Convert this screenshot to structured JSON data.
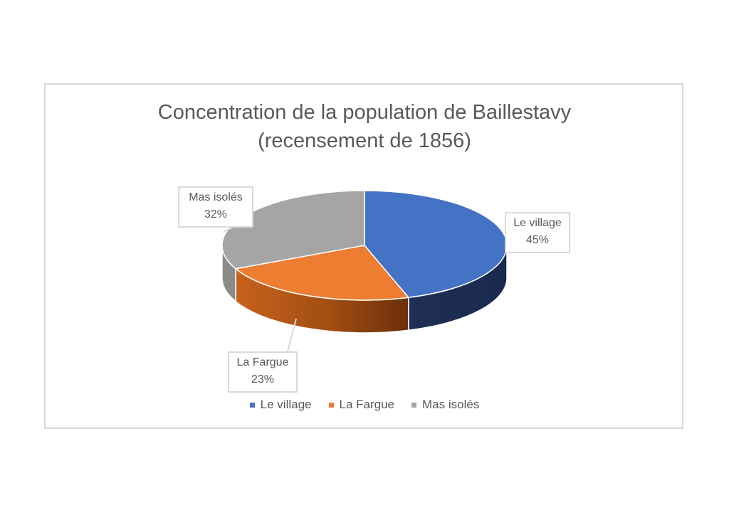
{
  "chart_data": {
    "type": "pie",
    "title_lines": [
      "Concentration de la population de Baillestavy",
      "(recensement de 1856)"
    ],
    "categories": [
      "Le village",
      "La Fargue",
      "Mas isolés"
    ],
    "values": [
      45,
      23,
      32
    ],
    "value_labels": [
      "45%",
      "23%",
      "32%"
    ],
    "colors": [
      "#4472c4",
      "#ed7d31",
      "#a5a5a5"
    ],
    "legend_position": "bottom",
    "three_d": true
  }
}
